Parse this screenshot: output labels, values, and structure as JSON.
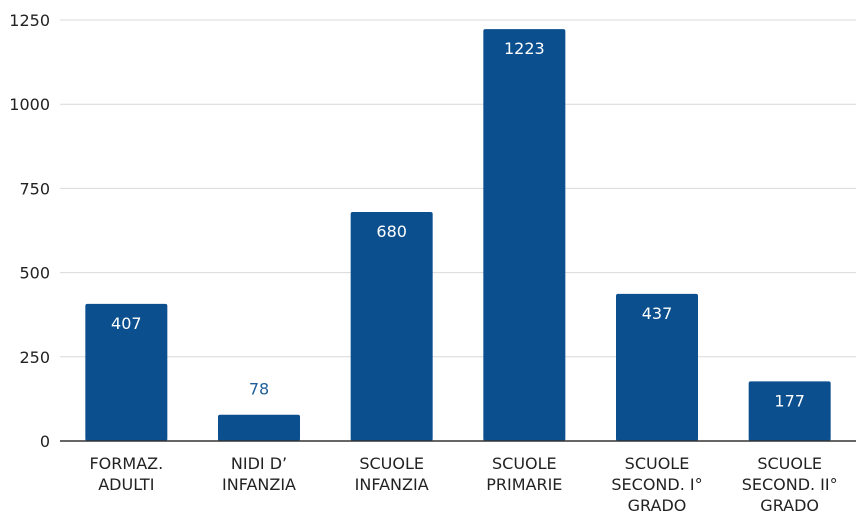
{
  "chart_data": {
    "type": "bar",
    "title": "",
    "xlabel": "",
    "ylabel": "",
    "categories": [
      [
        "FORMAZ.",
        "ADULTI"
      ],
      [
        "NIDI D’",
        "INFANZIA"
      ],
      [
        "SCUOLE",
        "INFANZIA"
      ],
      [
        "SCUOLE",
        "PRIMARIE"
      ],
      [
        "SCUOLE",
        "SECOND. I°",
        "GRADO"
      ],
      [
        "SCUOLE",
        "SECOND. II°",
        "GRADO"
      ]
    ],
    "values": [
      407,
      78,
      680,
      1223,
      437,
      177
    ],
    "data_labels": [
      "407",
      "78",
      "680",
      "1223",
      "437",
      "177"
    ],
    "ylim": [
      0,
      1250
    ],
    "yticks": [
      0,
      250,
      500,
      750,
      1000,
      1250
    ],
    "ytick_labels": [
      "0",
      "250",
      "500",
      "750",
      "1000",
      "1250"
    ],
    "grid": true,
    "legend": "none",
    "bar_color": "#0b4f8e",
    "label_color_inside": "#ffffff",
    "label_color_outside": "#1f5f99"
  }
}
